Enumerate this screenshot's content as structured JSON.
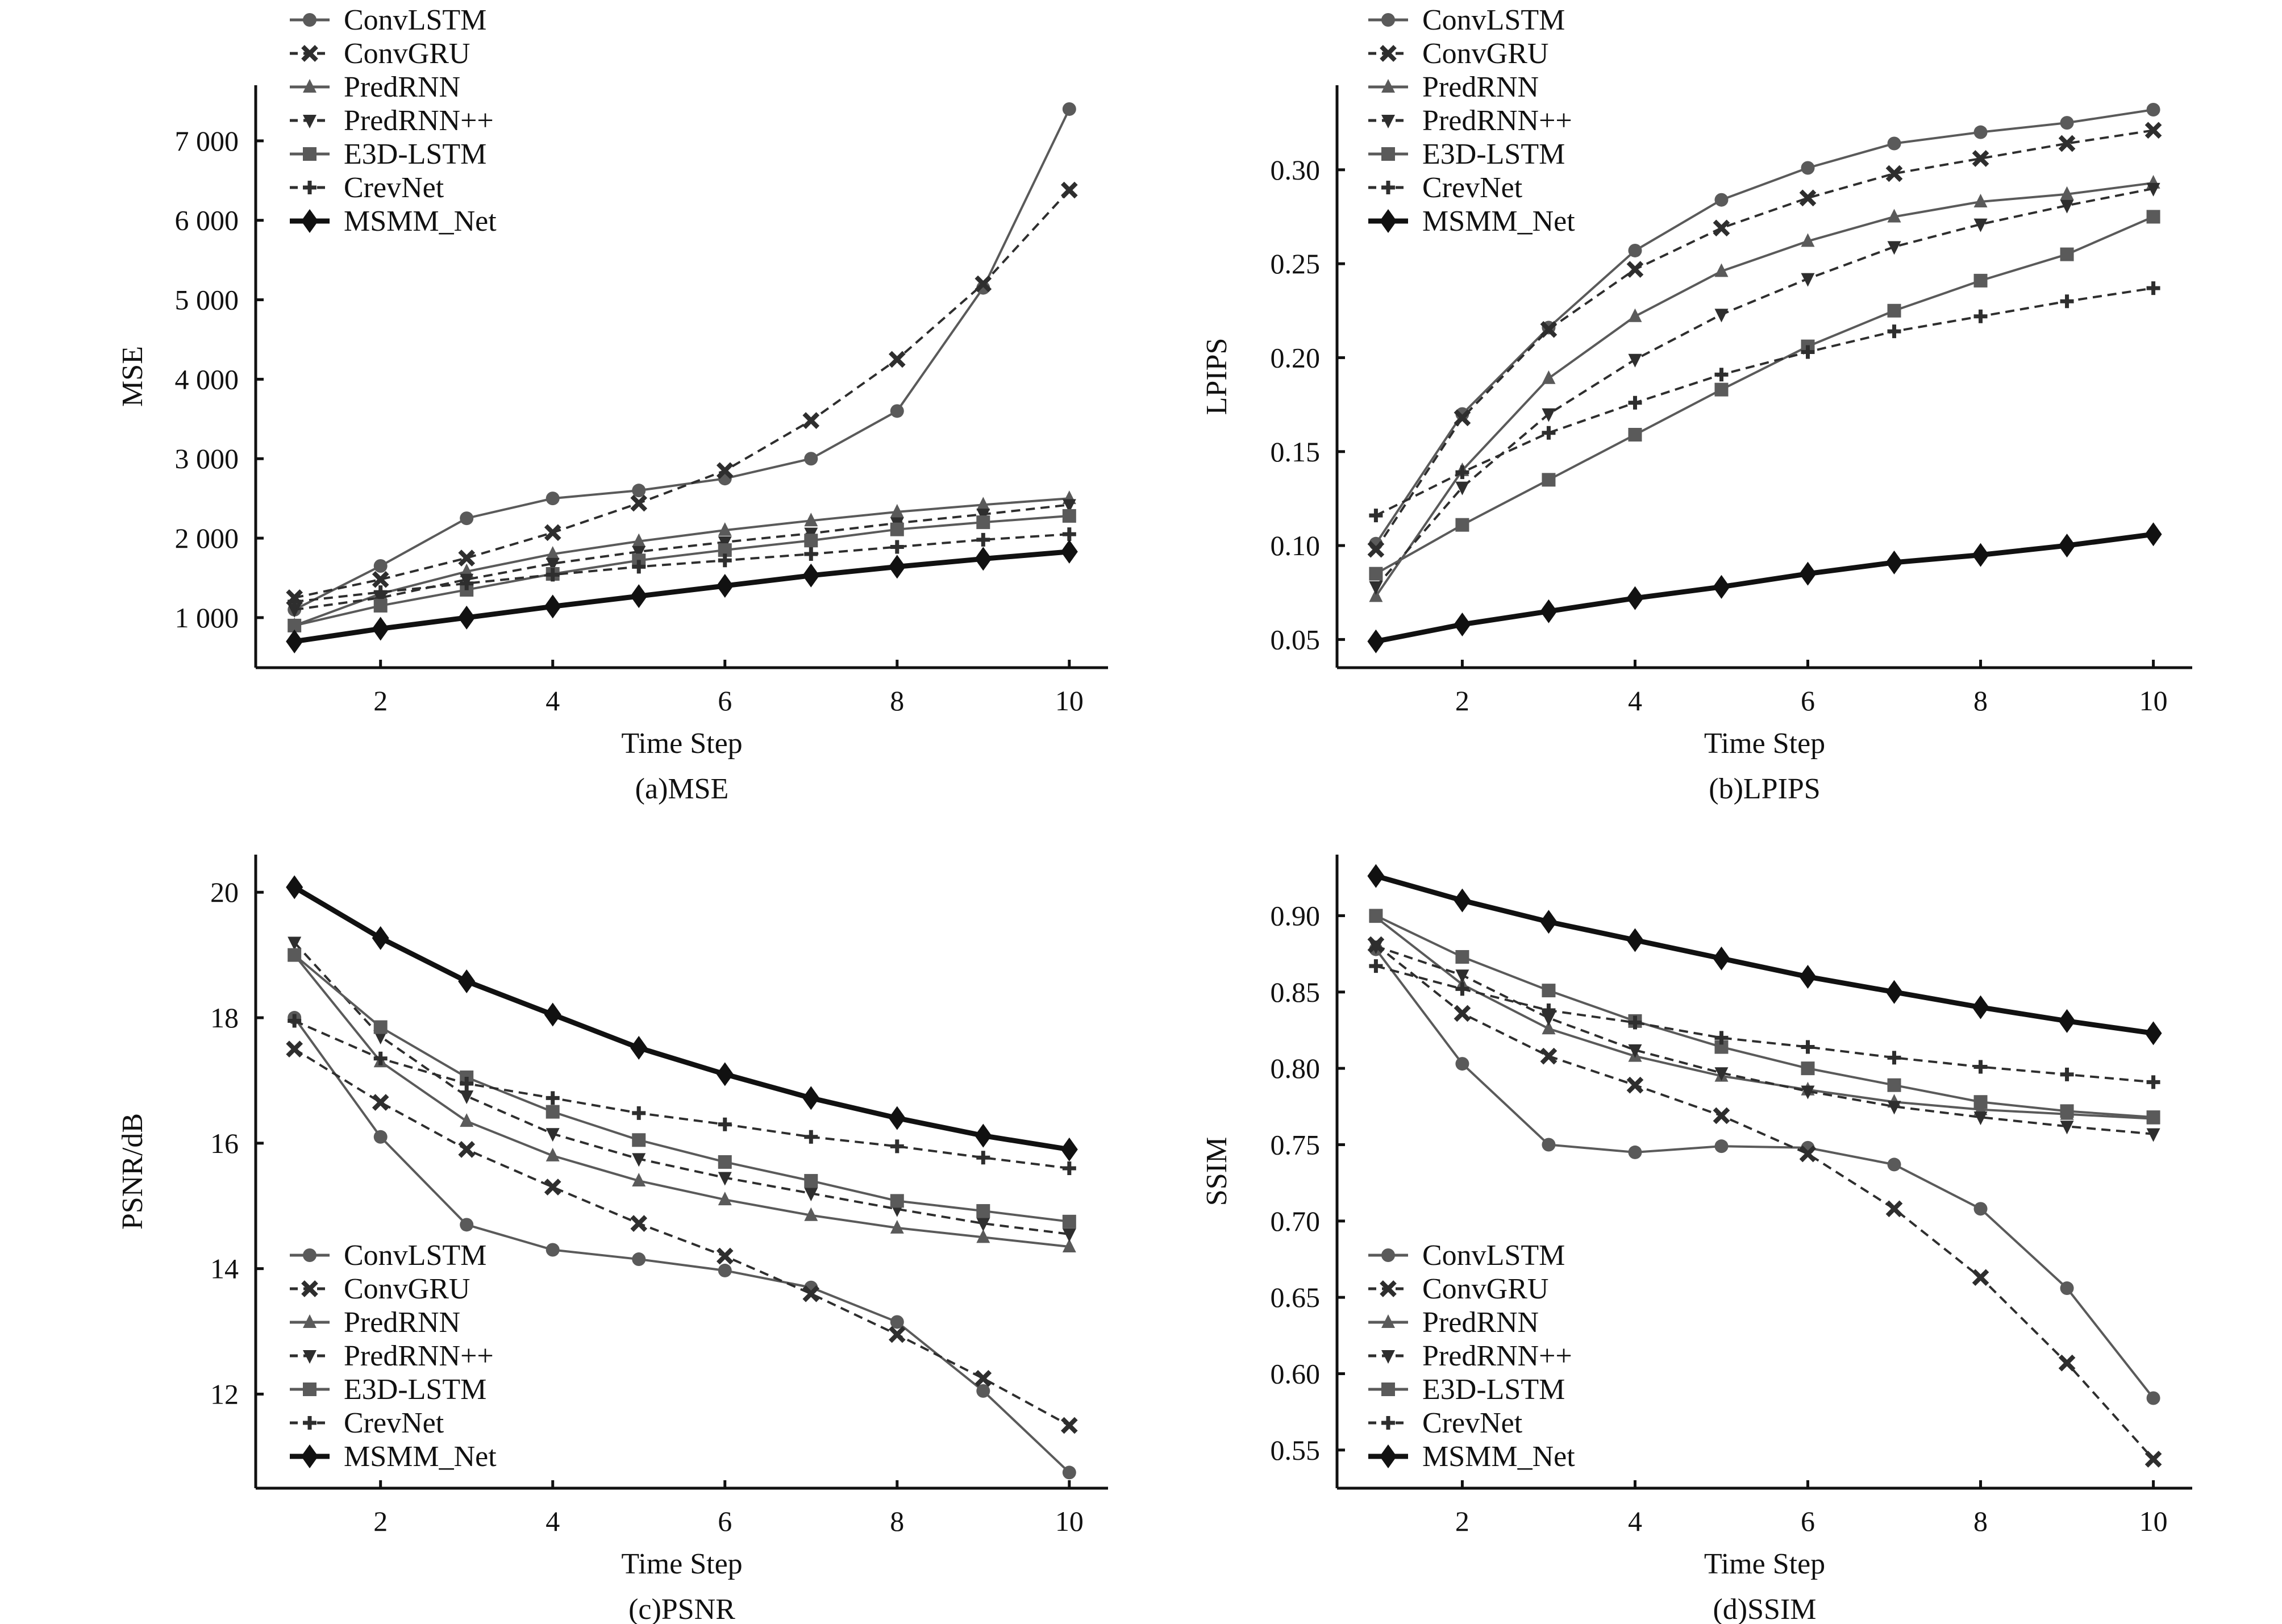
{
  "chart_data": [
    {
      "id": "mse",
      "type": "line",
      "caption": "(a)MSE",
      "xlabel": "Time Step",
      "ylabel": "MSE",
      "x": [
        1,
        2,
        3,
        4,
        5,
        6,
        7,
        8,
        9,
        10
      ],
      "xticks": [
        2,
        4,
        6,
        8,
        10
      ],
      "xtick_labels": [
        "2",
        "4",
        "6",
        "8",
        "10"
      ],
      "xlim": [
        0.55,
        10.45
      ],
      "ylim": [
        370,
        7700
      ],
      "yticks": [
        1000,
        2000,
        3000,
        4000,
        5000,
        6000,
        7000
      ],
      "ytick_labels": [
        "1 000",
        "2 000",
        "3 000",
        "4 000",
        "5 000",
        "6 000",
        "7 000"
      ],
      "legend_position": "top-left",
      "grid": false,
      "series": [
        {
          "name": "ConvLSTM",
          "values": [
            1100,
            1650,
            2250,
            2500,
            2600,
            2750,
            3000,
            3600,
            5150,
            7400
          ]
        },
        {
          "name": "ConvGRU",
          "values": [
            1250,
            1480,
            1750,
            2070,
            2440,
            2850,
            3480,
            4250,
            5200,
            6380
          ]
        },
        {
          "name": "PredRNN",
          "values": [
            900,
            1300,
            1580,
            1800,
            1960,
            2100,
            2220,
            2330,
            2420,
            2500
          ]
        },
        {
          "name": "PredRNN++",
          "values": [
            1100,
            1250,
            1480,
            1680,
            1830,
            1950,
            2060,
            2190,
            2300,
            2420
          ]
        },
        {
          "name": "E3D-LSTM",
          "values": [
            900,
            1150,
            1350,
            1550,
            1720,
            1850,
            1970,
            2110,
            2200,
            2280
          ]
        },
        {
          "name": "CrevNet",
          "values": [
            1200,
            1320,
            1430,
            1540,
            1640,
            1720,
            1800,
            1890,
            1980,
            2050
          ]
        },
        {
          "name": "MSMM_Net",
          "values": [
            700,
            860,
            1000,
            1140,
            1270,
            1400,
            1530,
            1640,
            1740,
            1830
          ]
        }
      ]
    },
    {
      "id": "lpips",
      "type": "line",
      "caption": "(b)LPIPS",
      "xlabel": "Time Step",
      "ylabel": "LPIPS",
      "x": [
        1,
        2,
        3,
        4,
        5,
        6,
        7,
        8,
        9,
        10
      ],
      "xticks": [
        2,
        4,
        6,
        8,
        10
      ],
      "xtick_labels": [
        "2",
        "4",
        "6",
        "8",
        "10"
      ],
      "xlim": [
        0.55,
        10.45
      ],
      "ylim": [
        0.035,
        0.345
      ],
      "yticks": [
        0.05,
        0.1,
        0.15,
        0.2,
        0.25,
        0.3
      ],
      "ytick_labels": [
        "0.05",
        "0.10",
        "0.15",
        "0.20",
        "0.25",
        "0.30"
      ],
      "legend_position": "top-left",
      "grid": false,
      "series": [
        {
          "name": "ConvLSTM",
          "values": [
            0.101,
            0.17,
            0.216,
            0.257,
            0.284,
            0.301,
            0.314,
            0.32,
            0.325,
            0.332
          ]
        },
        {
          "name": "ConvGRU",
          "values": [
            0.098,
            0.168,
            0.215,
            0.247,
            0.269,
            0.285,
            0.298,
            0.306,
            0.314,
            0.321
          ]
        },
        {
          "name": "PredRNN",
          "values": [
            0.073,
            0.14,
            0.189,
            0.222,
            0.246,
            0.262,
            0.275,
            0.283,
            0.287,
            0.293
          ]
        },
        {
          "name": "PredRNN++",
          "values": [
            0.078,
            0.131,
            0.17,
            0.199,
            0.223,
            0.242,
            0.259,
            0.271,
            0.281,
            0.29
          ]
        },
        {
          "name": "E3D-LSTM",
          "values": [
            0.085,
            0.111,
            0.135,
            0.159,
            0.183,
            0.206,
            0.225,
            0.241,
            0.255,
            0.275
          ]
        },
        {
          "name": "CrevNet",
          "values": [
            0.116,
            0.139,
            0.16,
            0.176,
            0.191,
            0.203,
            0.214,
            0.222,
            0.23,
            0.237
          ]
        },
        {
          "name": "MSMM_Net",
          "values": [
            0.049,
            0.058,
            0.065,
            0.072,
            0.078,
            0.085,
            0.091,
            0.095,
            0.1,
            0.106
          ]
        }
      ]
    },
    {
      "id": "psnr",
      "type": "line",
      "caption": "(c)PSNR",
      "xlabel": "Time Step",
      "ylabel": "PSNR/dB",
      "x": [
        1,
        2,
        3,
        4,
        5,
        6,
        7,
        8,
        9,
        10
      ],
      "xticks": [
        2,
        4,
        6,
        8,
        10
      ],
      "xtick_labels": [
        "2",
        "4",
        "6",
        "8",
        "10"
      ],
      "xlim": [
        0.55,
        10.45
      ],
      "ylim": [
        10.5,
        20.6
      ],
      "yticks": [
        12,
        14,
        16,
        18,
        20
      ],
      "ytick_labels": [
        "12",
        "14",
        "16",
        "18",
        "20"
      ],
      "legend_position": "bottom-left",
      "grid": false,
      "series": [
        {
          "name": "ConvLSTM",
          "values": [
            18.0,
            16.1,
            14.7,
            14.3,
            14.15,
            13.97,
            13.7,
            13.15,
            12.05,
            10.75
          ]
        },
        {
          "name": "ConvGRU",
          "values": [
            17.5,
            16.65,
            15.9,
            15.3,
            14.72,
            14.2,
            13.6,
            12.95,
            12.25,
            11.5
          ]
        },
        {
          "name": "PredRNN",
          "values": [
            19.0,
            17.3,
            16.35,
            15.8,
            15.4,
            15.1,
            14.85,
            14.65,
            14.5,
            14.35
          ]
        },
        {
          "name": "PredRNN++",
          "values": [
            19.2,
            17.7,
            16.75,
            16.15,
            15.75,
            15.45,
            15.2,
            14.95,
            14.72,
            14.55
          ]
        },
        {
          "name": "E3D-LSTM",
          "values": [
            19.0,
            17.85,
            17.05,
            16.5,
            16.05,
            15.7,
            15.4,
            15.08,
            14.92,
            14.75
          ]
        },
        {
          "name": "CrevNet",
          "values": [
            17.95,
            17.35,
            16.95,
            16.72,
            16.48,
            16.3,
            16.1,
            15.95,
            15.77,
            15.6
          ]
        },
        {
          "name": "MSMM_Net",
          "values": [
            20.08,
            19.27,
            18.58,
            18.05,
            17.52,
            17.1,
            16.72,
            16.4,
            16.12,
            15.9
          ]
        }
      ]
    },
    {
      "id": "ssim",
      "type": "line",
      "caption": "(d)SSIM",
      "xlabel": "Time Step",
      "ylabel": "SSIM",
      "x": [
        1,
        2,
        3,
        4,
        5,
        6,
        7,
        8,
        9,
        10
      ],
      "xticks": [
        2,
        4,
        6,
        8,
        10
      ],
      "xtick_labels": [
        "2",
        "4",
        "6",
        "8",
        "10"
      ],
      "xlim": [
        0.55,
        10.45
      ],
      "ylim": [
        0.525,
        0.94
      ],
      "yticks": [
        0.55,
        0.6,
        0.65,
        0.7,
        0.75,
        0.8,
        0.85,
        0.9
      ],
      "ytick_labels": [
        "0.55",
        "0.60",
        "0.65",
        "0.70",
        "0.75",
        "0.80",
        "0.85",
        "0.90"
      ],
      "legend_position": "bottom-left",
      "grid": false,
      "series": [
        {
          "name": "ConvLSTM",
          "values": [
            0.878,
            0.803,
            0.75,
            0.745,
            0.749,
            0.748,
            0.737,
            0.708,
            0.656,
            0.584
          ]
        },
        {
          "name": "ConvGRU",
          "values": [
            0.881,
            0.836,
            0.808,
            0.789,
            0.769,
            0.744,
            0.708,
            0.663,
            0.607,
            0.544
          ]
        },
        {
          "name": "PredRNN",
          "values": [
            0.899,
            0.855,
            0.826,
            0.808,
            0.795,
            0.786,
            0.778,
            0.773,
            0.77,
            0.767
          ]
        },
        {
          "name": "PredRNN++",
          "values": [
            0.88,
            0.861,
            0.833,
            0.812,
            0.797,
            0.785,
            0.775,
            0.768,
            0.762,
            0.757
          ]
        },
        {
          "name": "E3D-LSTM",
          "values": [
            0.9,
            0.873,
            0.851,
            0.831,
            0.814,
            0.8,
            0.789,
            0.778,
            0.772,
            0.768
          ]
        },
        {
          "name": "CrevNet",
          "values": [
            0.867,
            0.852,
            0.838,
            0.83,
            0.82,
            0.814,
            0.807,
            0.801,
            0.796,
            0.791
          ]
        },
        {
          "name": "MSMM_Net",
          "values": [
            0.926,
            0.91,
            0.896,
            0.884,
            0.872,
            0.86,
            0.85,
            0.84,
            0.831,
            0.823
          ]
        }
      ]
    }
  ],
  "series_styles": {
    "ConvLSTM": {
      "marker": "circle",
      "dashed": false,
      "color": "#5a5a5a"
    },
    "ConvGRU": {
      "marker": "x",
      "dashed": true,
      "color": "#2e2e2e"
    },
    "PredRNN": {
      "marker": "triangle-up",
      "dashed": false,
      "color": "#5a5a5a"
    },
    "PredRNN++": {
      "marker": "triangle-down",
      "dashed": true,
      "color": "#2e2e2e"
    },
    "E3D-LSTM": {
      "marker": "square",
      "dashed": false,
      "color": "#5a5a5a"
    },
    "CrevNet": {
      "marker": "plus",
      "dashed": true,
      "color": "#2e2e2e"
    },
    "MSMM_Net": {
      "marker": "diamond",
      "dashed": false,
      "color": "#111111",
      "bold": true
    }
  }
}
